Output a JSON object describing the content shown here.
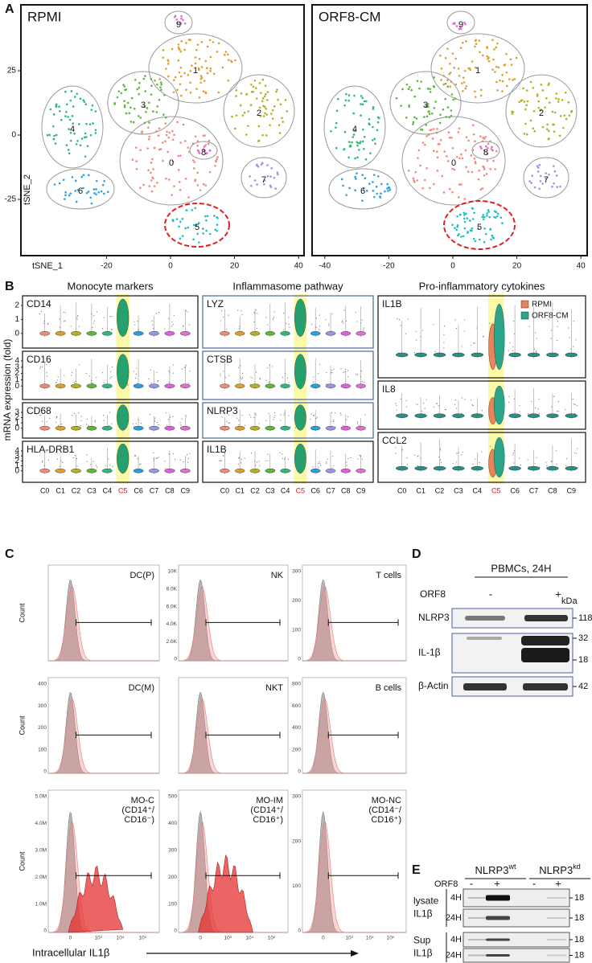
{
  "panel_a": {
    "label": "A",
    "x_label": "tSNE_1",
    "y_label": "tSNE_2",
    "plots": [
      {
        "title": "RPMI",
        "xticks": [
          -20,
          0,
          20,
          40
        ],
        "yticks": [
          25,
          0,
          -25
        ],
        "clusters": [
          "0",
          "1",
          "2",
          "3",
          "4",
          "5",
          "6",
          "7",
          "8",
          "9"
        ]
      },
      {
        "title": "ORF8-CM",
        "xticks": [
          -40,
          -20,
          0,
          20,
          40
        ],
        "clusters": [
          "0",
          "1",
          "2",
          "3",
          "4",
          "5",
          "6",
          "7",
          "8",
          "9"
        ]
      }
    ]
  },
  "panel_b": {
    "label": "B",
    "y_label": "mRNA expression (fold)",
    "categories": [
      "C0",
      "C1",
      "C2",
      "C3",
      "C4",
      "C5",
      "C6",
      "C7",
      "C8",
      "C9"
    ],
    "legend": [
      "RPMI",
      "ORF8-CM"
    ],
    "columns": [
      {
        "title": "Monocyte markers",
        "panels": [
          {
            "gene": "CD14",
            "yticks": [
              2,
              1,
              0
            ]
          },
          {
            "gene": "CD16",
            "yticks": [
              4,
              3,
              2,
              1,
              0
            ]
          },
          {
            "gene": "CD68",
            "yticks": [
              3,
              2,
              1,
              0
            ]
          },
          {
            "gene": "HLA-DRB1",
            "yticks": [
              4,
              3,
              2,
              1,
              0
            ]
          }
        ]
      },
      {
        "title": "Inflammasome pathway",
        "panels": [
          {
            "gene": "LYZ"
          },
          {
            "gene": "CTSB"
          },
          {
            "gene": "NLRP3"
          },
          {
            "gene": "IL1B"
          }
        ]
      },
      {
        "title": "Pro-inflammatory cytokines",
        "panels": [
          {
            "gene": "IL1B"
          },
          {
            "gene": "IL8"
          },
          {
            "gene": "CCL2"
          }
        ]
      }
    ]
  },
  "panel_c": {
    "label": "C",
    "y_label": "Count",
    "x_label": "Intracellular IL1β",
    "xticks": [
      "0",
      "10³",
      "10⁴",
      "10⁵"
    ],
    "plots": [
      {
        "title_lines": [
          "DC(P)"
        ]
      },
      {
        "title_lines": [
          "NK"
        ],
        "yticks": [
          "10K",
          "8.0K",
          "6.0K",
          "4.0K",
          "2.0K",
          "0"
        ]
      },
      {
        "title_lines": [
          "T cells"
        ],
        "yticks": [
          "300",
          "200",
          "100",
          "0"
        ]
      },
      {
        "title_lines": [
          "DC(M)"
        ],
        "yticks": [
          "400",
          "300",
          "200",
          "100",
          "0"
        ]
      },
      {
        "title_lines": [
          "NKT"
        ]
      },
      {
        "title_lines": [
          "B cells"
        ],
        "yticks": [
          "800",
          "600",
          "400",
          "200",
          "0"
        ]
      },
      {
        "title_lines": [
          "MO-C",
          "(CD14⁺/",
          "CD16⁻)"
        ],
        "yticks": [
          "5.0M",
          "4.0M",
          "3.0M",
          "2.0M",
          "1.0M",
          "0"
        ]
      },
      {
        "title_lines": [
          "MO-IM",
          "(CD14⁺/",
          "CD16⁺)"
        ],
        "yticks": [
          "500",
          "400",
          "300",
          "200",
          "100",
          "0"
        ]
      },
      {
        "title_lines": [
          "MO-NC",
          "(CD14⁻/",
          "CD16⁺)"
        ],
        "yticks": [
          "300",
          "200",
          "100",
          "0"
        ]
      }
    ]
  },
  "panel_d": {
    "label": "D",
    "header": "PBMCs, 24H",
    "treatment": "ORF8",
    "lanes": [
      "-",
      "+"
    ],
    "unit": "kDa",
    "blots": [
      {
        "name": "NLRP3",
        "markers": [
          118
        ]
      },
      {
        "name": "IL-1β",
        "markers": [
          32,
          18
        ]
      },
      {
        "name": "β-Actin",
        "markers": [
          42
        ]
      }
    ]
  },
  "panel_e": {
    "label": "E",
    "treatment": "ORF8",
    "groups": [
      {
        "name": "NLRP3",
        "sup": "wt"
      },
      {
        "name": "NLRP3",
        "sup": "kd"
      }
    ],
    "lanes": [
      "-",
      "+",
      "-",
      "+"
    ],
    "sections": [
      {
        "name_lines": [
          "lysate",
          "IL1β"
        ],
        "rows": [
          {
            "time": "4H",
            "marker": 18
          },
          {
            "time": "24H",
            "marker": 18
          }
        ]
      },
      {
        "name_lines": [
          "Sup",
          "IL1β"
        ],
        "rows": [
          {
            "time": "4H",
            "marker": 18
          },
          {
            "time": "24H",
            "marker": 18
          }
        ]
      }
    ]
  }
}
